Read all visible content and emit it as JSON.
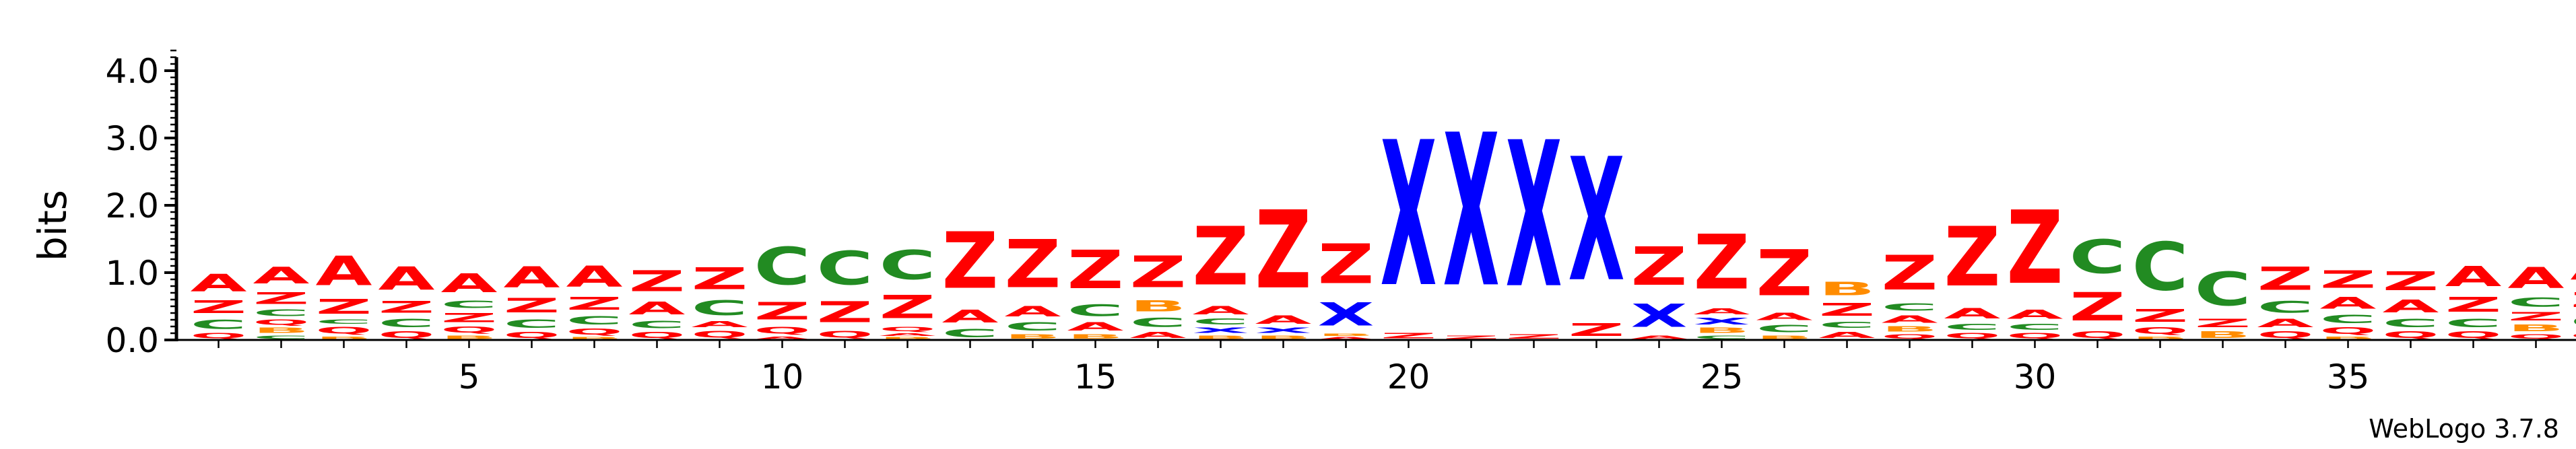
{
  "chart_data": {
    "type": "sequence-logo",
    "ylabel": "bits",
    "ylim": [
      0,
      4.3
    ],
    "y_ticks": [
      0.0,
      1.0,
      2.0,
      3.0,
      4.0
    ],
    "y_tick_labels": [
      "0.0",
      "1.0",
      "2.0",
      "3.0",
      "4.0"
    ],
    "x_ticks": [
      5,
      10,
      15,
      20,
      25,
      30,
      35
    ],
    "x_tick_labels": [
      "5",
      "10",
      "15",
      "20",
      "25",
      "30",
      "35"
    ],
    "x_range": [
      1,
      39
    ],
    "colors": {
      "A": "#ff0000",
      "Z": "#ff0000",
      "Q": "#ff0000",
      "C": "#228b22",
      "B": "#ff8c00",
      "X": "#0000ff"
    },
    "footer": "WebLogo 3.7.8",
    "positions": [
      {
        "pos": 1,
        "stack": [
          [
            "Q",
            0.12
          ],
          [
            "C",
            0.22
          ],
          [
            "Z",
            0.3
          ],
          [
            "A",
            0.42
          ]
        ]
      },
      {
        "pos": 2,
        "stack": [
          [
            "C",
            0.08
          ],
          [
            "B",
            0.12
          ],
          [
            "Q",
            0.12
          ],
          [
            "C",
            0.16
          ],
          [
            "Z",
            0.28
          ],
          [
            "A",
            0.4
          ]
        ]
      },
      {
        "pos": 3,
        "stack": [
          [
            "B",
            0.06
          ],
          [
            "Q",
            0.16
          ],
          [
            "C",
            0.1
          ],
          [
            "Z",
            0.35
          ],
          [
            "A",
            0.7
          ]
        ]
      },
      {
        "pos": 4,
        "stack": [
          [
            "Q",
            0.15
          ],
          [
            "C",
            0.2
          ],
          [
            "Z",
            0.28
          ],
          [
            "A",
            0.55
          ]
        ]
      },
      {
        "pos": 5,
        "stack": [
          [
            "B",
            0.08
          ],
          [
            "Q",
            0.14
          ],
          [
            "Z",
            0.22
          ],
          [
            "C",
            0.18
          ],
          [
            "A",
            0.45
          ]
        ]
      },
      {
        "pos": 6,
        "stack": [
          [
            "Q",
            0.14
          ],
          [
            "C",
            0.2
          ],
          [
            "Z",
            0.34
          ],
          [
            "A",
            0.5
          ]
        ]
      },
      {
        "pos": 7,
        "stack": [
          [
            "B",
            0.05
          ],
          [
            "Q",
            0.14
          ],
          [
            "C",
            0.2
          ],
          [
            "Z",
            0.3
          ],
          [
            "A",
            0.5
          ]
        ]
      },
      {
        "pos": 8,
        "stack": [
          [
            "Q",
            0.14
          ],
          [
            "C",
            0.18
          ],
          [
            "A",
            0.3
          ],
          [
            "Z",
            0.5
          ]
        ]
      },
      {
        "pos": 9,
        "stack": [
          [
            "Q",
            0.16
          ],
          [
            "A",
            0.14
          ],
          [
            "C",
            0.35
          ],
          [
            "Z",
            0.52
          ]
        ]
      },
      {
        "pos": 10,
        "stack": [
          [
            "A",
            0.06
          ],
          [
            "Q",
            0.16
          ],
          [
            "Z",
            0.42
          ],
          [
            "C",
            0.9
          ]
        ]
      },
      {
        "pos": 11,
        "stack": [
          [
            "Q",
            0.16
          ],
          [
            "Z",
            0.5
          ],
          [
            "C",
            0.8
          ]
        ]
      },
      {
        "pos": 12,
        "stack": [
          [
            "B",
            0.05
          ],
          [
            "A",
            0.06
          ],
          [
            "Q",
            0.1
          ],
          [
            "Z",
            0.55
          ],
          [
            "C",
            0.7
          ]
        ]
      },
      {
        "pos": 13,
        "stack": [
          [
            "C",
            0.2
          ],
          [
            "A",
            0.3
          ],
          [
            "Z",
            1.35
          ]
        ]
      },
      {
        "pos": 14,
        "stack": [
          [
            "B",
            0.1
          ],
          [
            "C",
            0.2
          ],
          [
            "A",
            0.25
          ],
          [
            "Z",
            1.15
          ]
        ]
      },
      {
        "pos": 15,
        "stack": [
          [
            "B",
            0.1
          ],
          [
            "A",
            0.2
          ],
          [
            "C",
            0.28
          ],
          [
            "Z",
            0.92
          ]
        ]
      },
      {
        "pos": 16,
        "stack": [
          [
            "A",
            0.15
          ],
          [
            "C",
            0.22
          ],
          [
            "B",
            0.26
          ],
          [
            "Z",
            0.75
          ]
        ]
      },
      {
        "pos": 17,
        "stack": [
          [
            "B",
            0.08
          ],
          [
            "X",
            0.12
          ],
          [
            "C",
            0.14
          ],
          [
            "A",
            0.2
          ],
          [
            "Z",
            1.4
          ]
        ]
      },
      {
        "pos": 18,
        "stack": [
          [
            "B",
            0.08
          ],
          [
            "X",
            0.12
          ],
          [
            "A",
            0.2
          ],
          [
            "Z",
            1.86
          ]
        ]
      },
      {
        "pos": 19,
        "stack": [
          [
            "A",
            0.05
          ],
          [
            "B",
            0.05
          ],
          [
            "X",
            0.55
          ],
          [
            "Z",
            0.95
          ]
        ]
      },
      {
        "pos": 20,
        "stack": [
          [
            "Z",
            0.12
          ],
          [
            "X",
            3.46
          ]
        ]
      },
      {
        "pos": 21,
        "stack": [
          [
            "Z",
            0.08
          ],
          [
            "X",
            3.64
          ]
        ]
      },
      {
        "pos": 22,
        "stack": [
          [
            "Z",
            0.1
          ],
          [
            "X",
            3.48
          ]
        ]
      },
      {
        "pos": 23,
        "stack": [
          [
            "Z",
            0.3
          ],
          [
            "X",
            2.94
          ]
        ]
      },
      {
        "pos": 24,
        "stack": [
          [
            "A",
            0.08
          ],
          [
            "X",
            0.55
          ],
          [
            "Z",
            0.92
          ]
        ]
      },
      {
        "pos": 25,
        "stack": [
          [
            "C",
            0.08
          ],
          [
            "B",
            0.12
          ],
          [
            "X",
            0.15
          ],
          [
            "A",
            0.15
          ],
          [
            "Z",
            1.3
          ]
        ]
      },
      {
        "pos": 26,
        "stack": [
          [
            "B",
            0.08
          ],
          [
            "C",
            0.18
          ],
          [
            "A",
            0.18
          ],
          [
            "Z",
            1.1
          ]
        ]
      },
      {
        "pos": 27,
        "stack": [
          [
            "A",
            0.15
          ],
          [
            "C",
            0.15
          ],
          [
            "Z",
            0.3
          ],
          [
            "B",
            0.32
          ]
        ]
      },
      {
        "pos": 28,
        "stack": [
          [
            "Q",
            0.1
          ],
          [
            "B",
            0.12
          ],
          [
            "A",
            0.18
          ],
          [
            "C",
            0.18
          ],
          [
            "Z",
            0.82
          ]
        ]
      },
      {
        "pos": 29,
        "stack": [
          [
            "Q",
            0.12
          ],
          [
            "C",
            0.15
          ],
          [
            "A",
            0.25
          ],
          [
            "Z",
            1.42
          ]
        ]
      },
      {
        "pos": 30,
        "stack": [
          [
            "Q",
            0.12
          ],
          [
            "C",
            0.15
          ],
          [
            "A",
            0.22
          ],
          [
            "Z",
            1.75
          ]
        ]
      },
      {
        "pos": 31,
        "stack": [
          [
            "Q",
            0.15
          ],
          [
            "Z",
            0.68
          ],
          [
            "C",
            0.8
          ]
        ]
      },
      {
        "pos": 32,
        "stack": [
          [
            "B",
            0.06
          ],
          [
            "Q",
            0.15
          ],
          [
            "Z",
            0.3
          ],
          [
            "C",
            1.15
          ]
        ]
      },
      {
        "pos": 33,
        "stack": [
          [
            "B",
            0.15
          ],
          [
            "Z",
            0.2
          ],
          [
            "C",
            0.8
          ]
        ]
      },
      {
        "pos": 34,
        "stack": [
          [
            "Q",
            0.15
          ],
          [
            "A",
            0.2
          ],
          [
            "C",
            0.28
          ],
          [
            "Z",
            0.55
          ]
        ]
      },
      {
        "pos": 35,
        "stack": [
          [
            "B",
            0.06
          ],
          [
            "Q",
            0.15
          ],
          [
            "C",
            0.2
          ],
          [
            "A",
            0.28
          ],
          [
            "Z",
            0.42
          ]
        ]
      },
      {
        "pos": 36,
        "stack": [
          [
            "Q",
            0.15
          ],
          [
            "C",
            0.2
          ],
          [
            "A",
            0.3
          ],
          [
            "Z",
            0.45
          ]
        ]
      },
      {
        "pos": 37,
        "stack": [
          [
            "Q",
            0.15
          ],
          [
            "C",
            0.2
          ],
          [
            "Z",
            0.35
          ],
          [
            "A",
            0.48
          ]
        ]
      },
      {
        "pos": 38,
        "stack": [
          [
            "Q",
            0.1
          ],
          [
            "B",
            0.15
          ],
          [
            "Z",
            0.2
          ],
          [
            "C",
            0.22
          ],
          [
            "A",
            0.5
          ]
        ]
      },
      {
        "pos": 39,
        "stack": [
          [
            "Q",
            0.12
          ],
          [
            "C",
            0.3
          ],
          [
            "Z",
            0.35
          ],
          [
            "A",
            0.6
          ]
        ]
      }
    ]
  }
}
